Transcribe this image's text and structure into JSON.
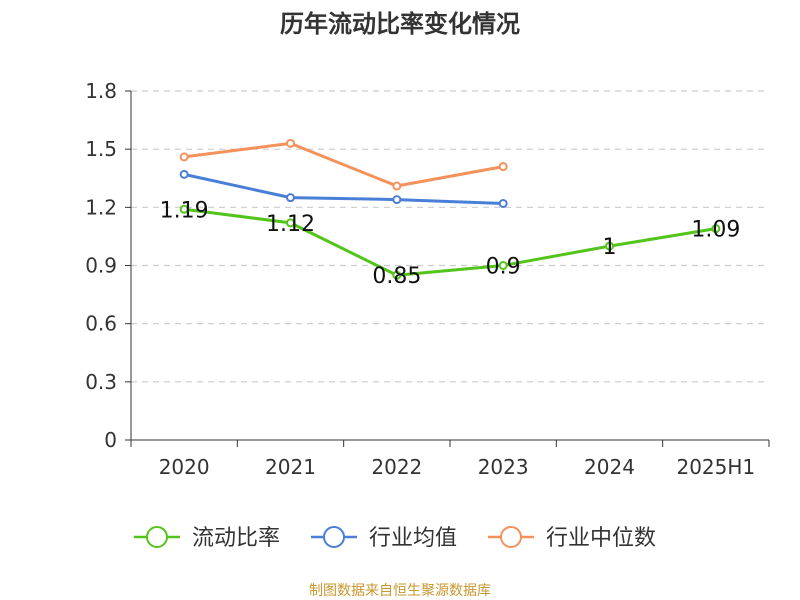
{
  "chart_data": {
    "type": "line",
    "title": "历年流动比率变化情况",
    "categories": [
      "2020",
      "2021",
      "2022",
      "2023",
      "2024",
      "2025H1"
    ],
    "yticks": [
      "0",
      "0.3",
      "0.6",
      "0.9",
      "1.2",
      "1.5",
      "1.8"
    ],
    "ylim": [
      0,
      1.8
    ],
    "grid": true,
    "legend_position": "bottom",
    "series": [
      {
        "name": "流动比率",
        "color": "#52c41a",
        "values": [
          1.19,
          1.12,
          0.85,
          0.9,
          1,
          1.09
        ],
        "labels": [
          "1.19",
          "1.12",
          "0.85",
          "0.9",
          "1",
          "1.09"
        ]
      },
      {
        "name": "行业均值",
        "color": "#4a7fd8",
        "values": [
          1.37,
          1.25,
          1.24,
          1.22,
          null,
          null
        ]
      },
      {
        "name": "行业中位数",
        "color": "#f5915a",
        "values": [
          1.46,
          1.53,
          1.31,
          1.41,
          null,
          null
        ]
      }
    ],
    "source": "制图数据来自恒生聚源数据库"
  }
}
